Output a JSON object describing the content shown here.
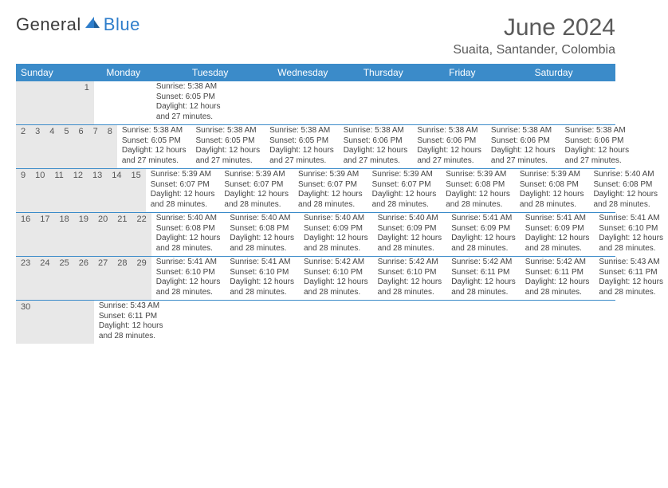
{
  "logo": {
    "text_general": "General",
    "text_blue": "Blue",
    "sail_color": "#2f7ecb",
    "sail_dark": "#1f5e99"
  },
  "title": "June 2024",
  "location": "Suaita, Santander, Colombia",
  "colors": {
    "header_bg": "#3b8bc9",
    "header_text": "#ffffff",
    "daynum_bg": "#e8e8e8",
    "row_border": "#3b8bc9",
    "text": "#444444"
  },
  "weekdays": [
    "Sunday",
    "Monday",
    "Tuesday",
    "Wednesday",
    "Thursday",
    "Friday",
    "Saturday"
  ],
  "weeks": [
    [
      {
        "num": "",
        "lines": []
      },
      {
        "num": "",
        "lines": []
      },
      {
        "num": "",
        "lines": []
      },
      {
        "num": "",
        "lines": []
      },
      {
        "num": "",
        "lines": []
      },
      {
        "num": "",
        "lines": []
      },
      {
        "num": "1",
        "lines": [
          "Sunrise: 5:38 AM",
          "Sunset: 6:05 PM",
          "Daylight: 12 hours",
          "and 27 minutes."
        ]
      }
    ],
    [
      {
        "num": "2",
        "lines": [
          "Sunrise: 5:38 AM",
          "Sunset: 6:05 PM",
          "Daylight: 12 hours",
          "and 27 minutes."
        ]
      },
      {
        "num": "3",
        "lines": [
          "Sunrise: 5:38 AM",
          "Sunset: 6:05 PM",
          "Daylight: 12 hours",
          "and 27 minutes."
        ]
      },
      {
        "num": "4",
        "lines": [
          "Sunrise: 5:38 AM",
          "Sunset: 6:05 PM",
          "Daylight: 12 hours",
          "and 27 minutes."
        ]
      },
      {
        "num": "5",
        "lines": [
          "Sunrise: 5:38 AM",
          "Sunset: 6:06 PM",
          "Daylight: 12 hours",
          "and 27 minutes."
        ]
      },
      {
        "num": "6",
        "lines": [
          "Sunrise: 5:38 AM",
          "Sunset: 6:06 PM",
          "Daylight: 12 hours",
          "and 27 minutes."
        ]
      },
      {
        "num": "7",
        "lines": [
          "Sunrise: 5:38 AM",
          "Sunset: 6:06 PM",
          "Daylight: 12 hours",
          "and 27 minutes."
        ]
      },
      {
        "num": "8",
        "lines": [
          "Sunrise: 5:38 AM",
          "Sunset: 6:06 PM",
          "Daylight: 12 hours",
          "and 27 minutes."
        ]
      }
    ],
    [
      {
        "num": "9",
        "lines": [
          "Sunrise: 5:39 AM",
          "Sunset: 6:07 PM",
          "Daylight: 12 hours",
          "and 28 minutes."
        ]
      },
      {
        "num": "10",
        "lines": [
          "Sunrise: 5:39 AM",
          "Sunset: 6:07 PM",
          "Daylight: 12 hours",
          "and 28 minutes."
        ]
      },
      {
        "num": "11",
        "lines": [
          "Sunrise: 5:39 AM",
          "Sunset: 6:07 PM",
          "Daylight: 12 hours",
          "and 28 minutes."
        ]
      },
      {
        "num": "12",
        "lines": [
          "Sunrise: 5:39 AM",
          "Sunset: 6:07 PM",
          "Daylight: 12 hours",
          "and 28 minutes."
        ]
      },
      {
        "num": "13",
        "lines": [
          "Sunrise: 5:39 AM",
          "Sunset: 6:08 PM",
          "Daylight: 12 hours",
          "and 28 minutes."
        ]
      },
      {
        "num": "14",
        "lines": [
          "Sunrise: 5:39 AM",
          "Sunset: 6:08 PM",
          "Daylight: 12 hours",
          "and 28 minutes."
        ]
      },
      {
        "num": "15",
        "lines": [
          "Sunrise: 5:40 AM",
          "Sunset: 6:08 PM",
          "Daylight: 12 hours",
          "and 28 minutes."
        ]
      }
    ],
    [
      {
        "num": "16",
        "lines": [
          "Sunrise: 5:40 AM",
          "Sunset: 6:08 PM",
          "Daylight: 12 hours",
          "and 28 minutes."
        ]
      },
      {
        "num": "17",
        "lines": [
          "Sunrise: 5:40 AM",
          "Sunset: 6:08 PM",
          "Daylight: 12 hours",
          "and 28 minutes."
        ]
      },
      {
        "num": "18",
        "lines": [
          "Sunrise: 5:40 AM",
          "Sunset: 6:09 PM",
          "Daylight: 12 hours",
          "and 28 minutes."
        ]
      },
      {
        "num": "19",
        "lines": [
          "Sunrise: 5:40 AM",
          "Sunset: 6:09 PM",
          "Daylight: 12 hours",
          "and 28 minutes."
        ]
      },
      {
        "num": "20",
        "lines": [
          "Sunrise: 5:41 AM",
          "Sunset: 6:09 PM",
          "Daylight: 12 hours",
          "and 28 minutes."
        ]
      },
      {
        "num": "21",
        "lines": [
          "Sunrise: 5:41 AM",
          "Sunset: 6:09 PM",
          "Daylight: 12 hours",
          "and 28 minutes."
        ]
      },
      {
        "num": "22",
        "lines": [
          "Sunrise: 5:41 AM",
          "Sunset: 6:10 PM",
          "Daylight: 12 hours",
          "and 28 minutes."
        ]
      }
    ],
    [
      {
        "num": "23",
        "lines": [
          "Sunrise: 5:41 AM",
          "Sunset: 6:10 PM",
          "Daylight: 12 hours",
          "and 28 minutes."
        ]
      },
      {
        "num": "24",
        "lines": [
          "Sunrise: 5:41 AM",
          "Sunset: 6:10 PM",
          "Daylight: 12 hours",
          "and 28 minutes."
        ]
      },
      {
        "num": "25",
        "lines": [
          "Sunrise: 5:42 AM",
          "Sunset: 6:10 PM",
          "Daylight: 12 hours",
          "and 28 minutes."
        ]
      },
      {
        "num": "26",
        "lines": [
          "Sunrise: 5:42 AM",
          "Sunset: 6:10 PM",
          "Daylight: 12 hours",
          "and 28 minutes."
        ]
      },
      {
        "num": "27",
        "lines": [
          "Sunrise: 5:42 AM",
          "Sunset: 6:11 PM",
          "Daylight: 12 hours",
          "and 28 minutes."
        ]
      },
      {
        "num": "28",
        "lines": [
          "Sunrise: 5:42 AM",
          "Sunset: 6:11 PM",
          "Daylight: 12 hours",
          "and 28 minutes."
        ]
      },
      {
        "num": "29",
        "lines": [
          "Sunrise: 5:43 AM",
          "Sunset: 6:11 PM",
          "Daylight: 12 hours",
          "and 28 minutes."
        ]
      }
    ],
    [
      {
        "num": "30",
        "lines": [
          "Sunrise: 5:43 AM",
          "Sunset: 6:11 PM",
          "Daylight: 12 hours",
          "and 28 minutes."
        ]
      },
      {
        "num": "",
        "lines": []
      },
      {
        "num": "",
        "lines": []
      },
      {
        "num": "",
        "lines": []
      },
      {
        "num": "",
        "lines": []
      },
      {
        "num": "",
        "lines": []
      },
      {
        "num": "",
        "lines": []
      }
    ]
  ]
}
